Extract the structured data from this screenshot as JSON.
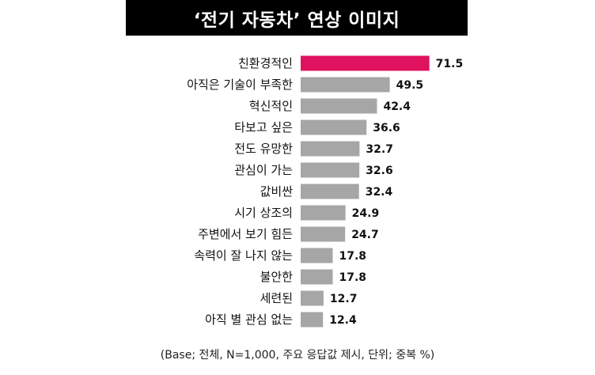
{
  "chart_data": {
    "type": "bar",
    "orientation": "horizontal",
    "title": "‘전기 자동차’ 연상 이미지",
    "categories": [
      "친환경적인",
      "아직은 기술이 부족한",
      "혁신적인",
      "타보고 싶은",
      "전도 유망한",
      "관심이 가는",
      "값비싼",
      "시기 상조의",
      "주변에서 보기 힘든",
      "속력이 잘 나지 않는",
      "불안한",
      "세련된",
      "아직 별 관심 없는"
    ],
    "values": [
      71.5,
      49.5,
      42.4,
      36.6,
      32.7,
      32.6,
      32.4,
      24.9,
      24.7,
      17.8,
      17.8,
      12.7,
      12.4
    ],
    "value_labels": [
      "71.5",
      "49.5",
      "42.4",
      "36.6",
      "32.7",
      "32.6",
      "32.4",
      "24.9",
      "24.7",
      "17.8",
      "17.8",
      "12.7",
      "12.4"
    ],
    "highlight_color": "#e0115f",
    "bar_color": "#a6a6a6",
    "grid": false,
    "legend": "none"
  },
  "footnote": "(Base; 전체, N=1,000, 주요 응답값 제시, 단위; 중복 %)"
}
